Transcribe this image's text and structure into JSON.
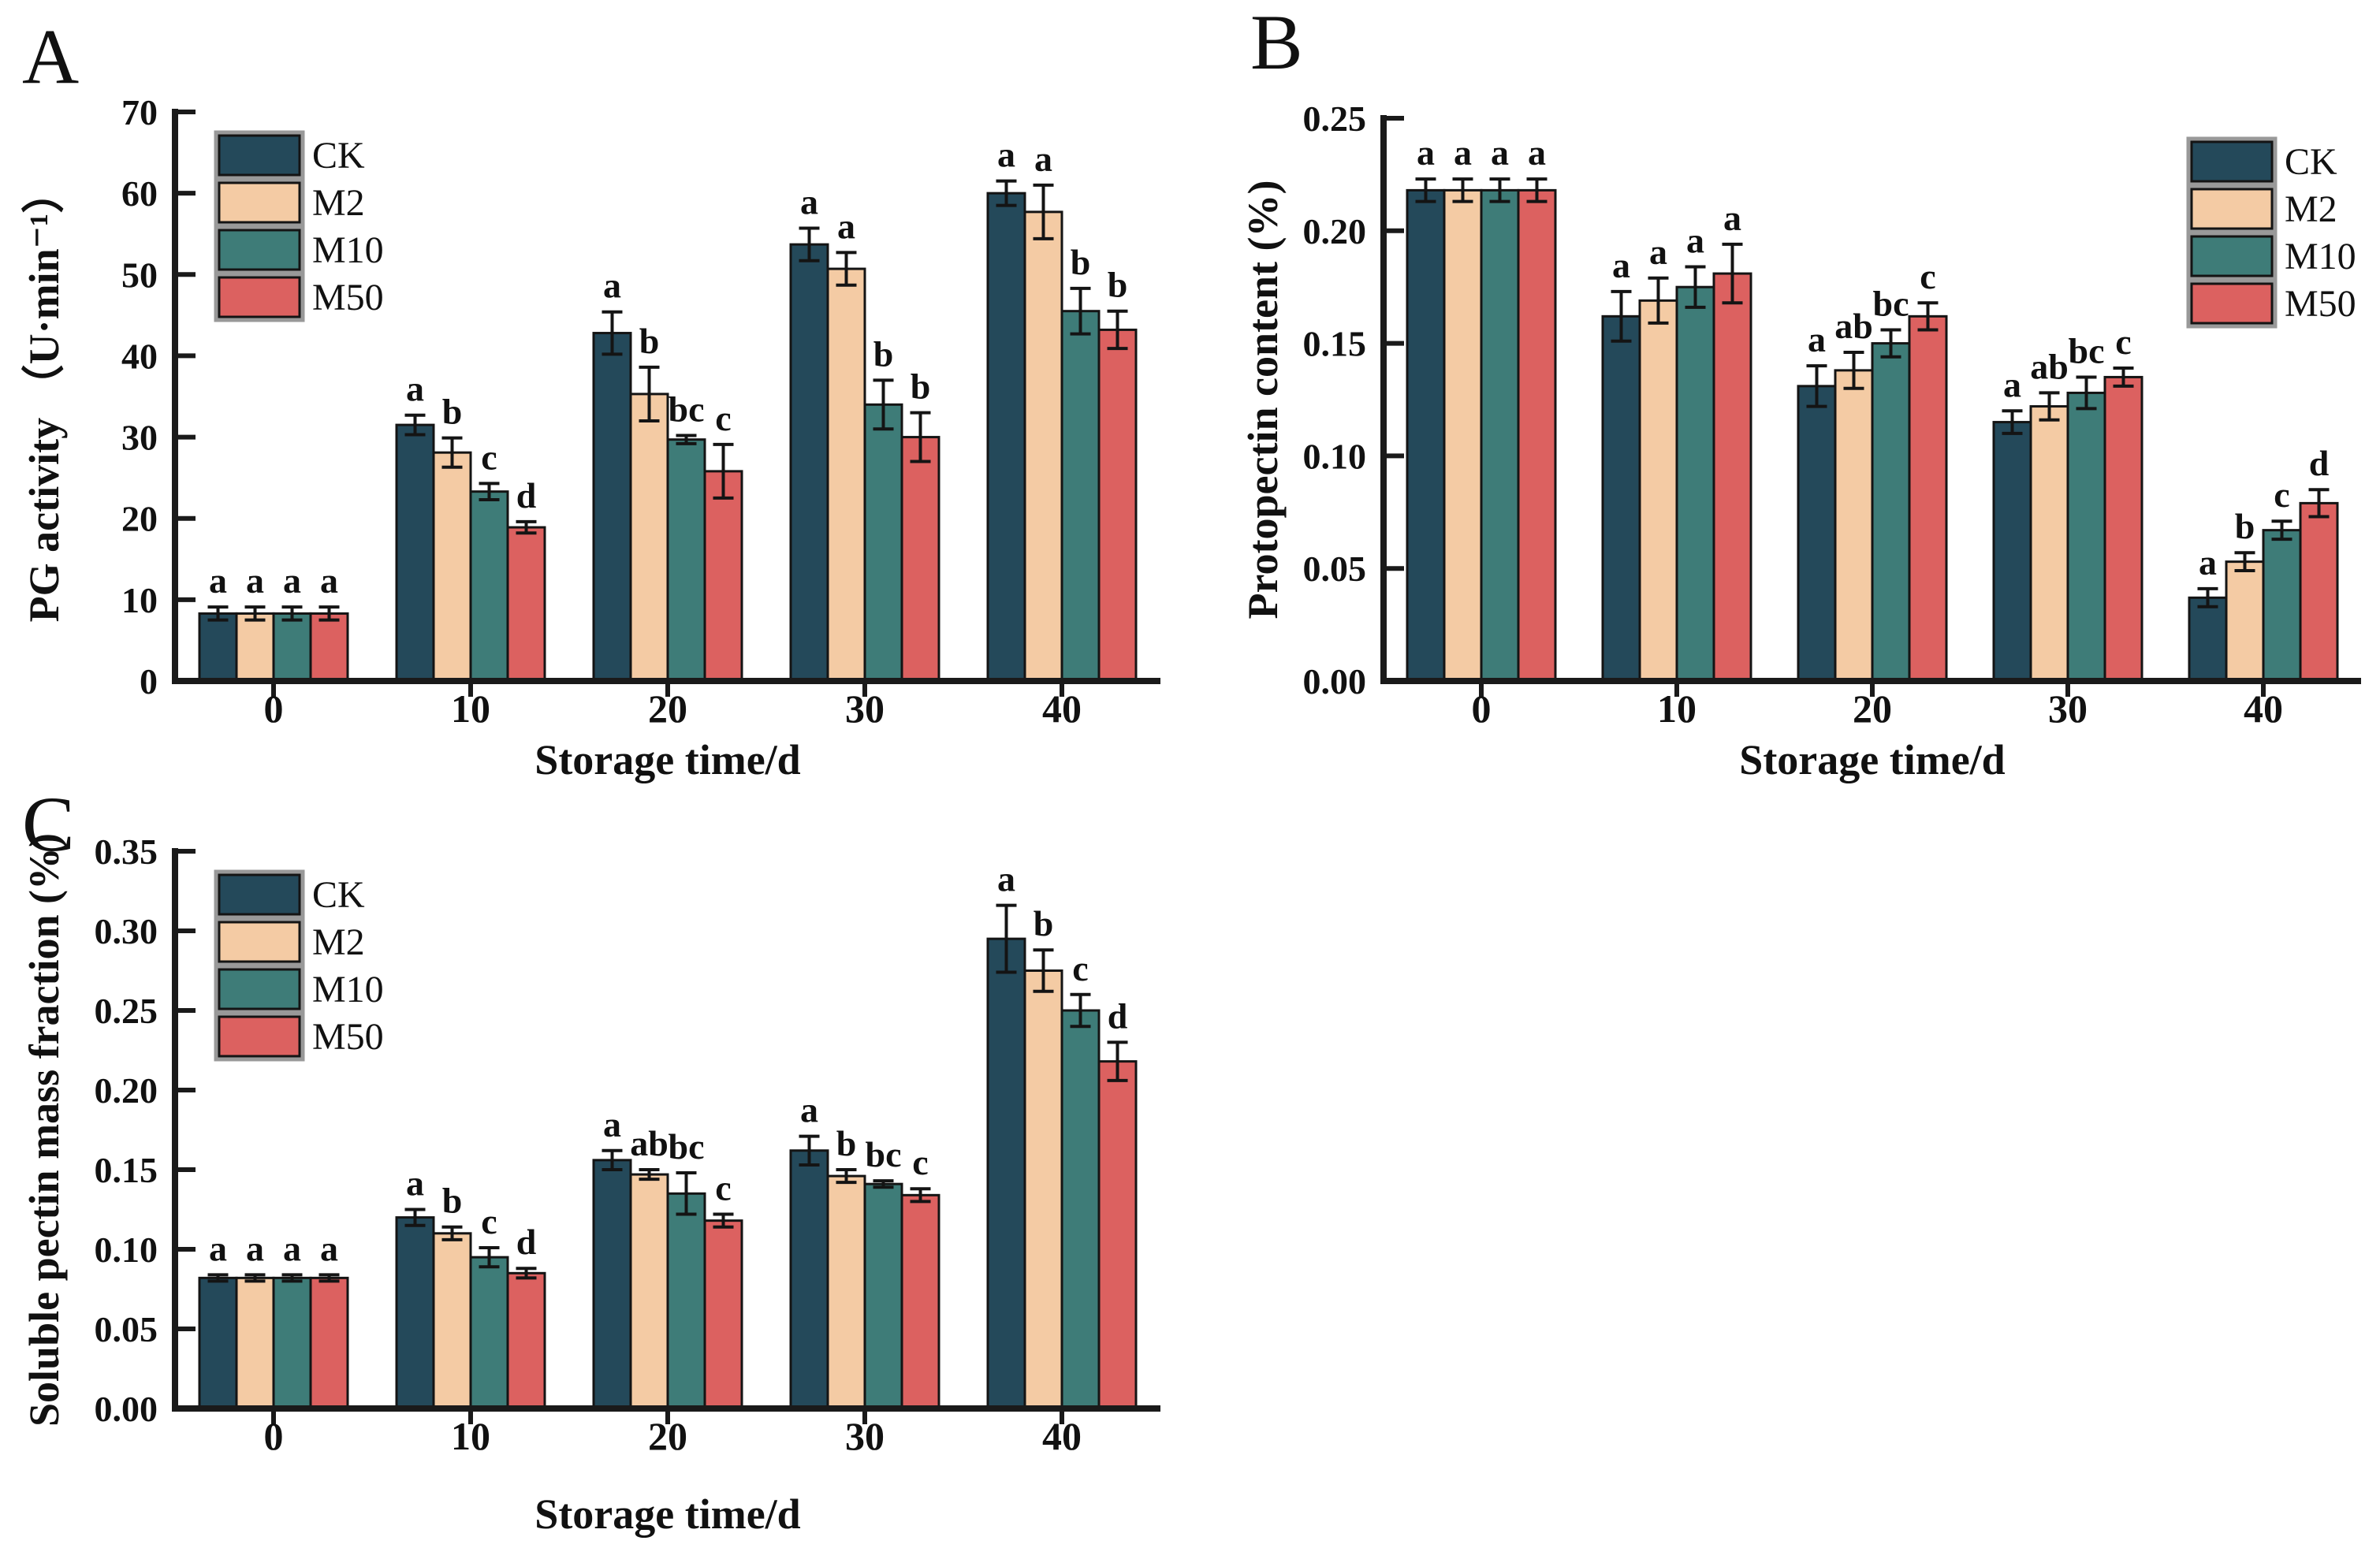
{
  "colors": {
    "CK": "#24495A",
    "M2": "#F4CBA4",
    "M10": "#3E7C78",
    "M50": "#DC6160",
    "axis": "#1A1A1A",
    "bar_border": "#141414",
    "legend_frame": "#999999",
    "text": "#111111"
  },
  "panels": [
    {
      "label": "A"
    },
    {
      "label": "B"
    },
    {
      "label": "C"
    }
  ],
  "chart_data": [
    {
      "type": "bar",
      "title": "",
      "xlabel": "Storage time/d",
      "ylabel": "PG activity （U·min⁻¹）",
      "categories": [
        "0",
        "10",
        "20",
        "30",
        "40"
      ],
      "ylim": [
        0,
        70
      ],
      "ytick_step": 10,
      "ytick_decimals": 0,
      "grid": false,
      "legend_position": "top-left",
      "legend": [
        "CK",
        "M2",
        "M10",
        "M50"
      ],
      "series": [
        {
          "name": "CK",
          "values": [
            8.3,
            31.5,
            42.8,
            53.7,
            60.0
          ],
          "errors": [
            0.8,
            1.2,
            2.6,
            2.0,
            1.5
          ],
          "letters": [
            "a",
            "a",
            "a",
            "a",
            "a"
          ]
        },
        {
          "name": "M2",
          "values": [
            8.3,
            28.1,
            35.3,
            50.7,
            57.7
          ],
          "errors": [
            0.8,
            1.8,
            3.3,
            2.0,
            3.3
          ],
          "letters": [
            "a",
            "b",
            "b",
            "a",
            "a"
          ]
        },
        {
          "name": "M10",
          "values": [
            8.3,
            23.3,
            29.7,
            34.0,
            45.5
          ],
          "errors": [
            0.8,
            1.0,
            0.5,
            3.0,
            2.8
          ],
          "letters": [
            "a",
            "c",
            "bc",
            "b",
            "b"
          ]
        },
        {
          "name": "M50",
          "values": [
            8.3,
            18.9,
            25.8,
            30.0,
            43.2
          ],
          "errors": [
            0.8,
            0.7,
            3.3,
            3.0,
            2.3
          ],
          "letters": [
            "a",
            "d",
            "c",
            "b",
            "b"
          ]
        }
      ]
    },
    {
      "type": "bar",
      "title": "",
      "xlabel": "Storage time/d",
      "ylabel": "Protopectin content (%)",
      "categories": [
        "0",
        "10",
        "20",
        "30",
        "40"
      ],
      "ylim": [
        0,
        0.25
      ],
      "ytick_step": 0.05,
      "ytick_decimals": 2,
      "grid": false,
      "legend_position": "top-right",
      "legend": [
        "CK",
        "M2",
        "M10",
        "M50"
      ],
      "series": [
        {
          "name": "CK",
          "values": [
            0.218,
            0.162,
            0.131,
            0.115,
            0.037
          ],
          "errors": [
            0.005,
            0.011,
            0.009,
            0.005,
            0.004
          ],
          "letters": [
            "a",
            "a",
            "a",
            "a",
            "a"
          ]
        },
        {
          "name": "M2",
          "values": [
            0.218,
            0.169,
            0.138,
            0.122,
            0.053
          ],
          "errors": [
            0.005,
            0.01,
            0.008,
            0.006,
            0.004
          ],
          "letters": [
            "a",
            "a",
            "ab",
            "ab",
            "b"
          ]
        },
        {
          "name": "M10",
          "values": [
            0.218,
            0.175,
            0.15,
            0.128,
            0.067
          ],
          "errors": [
            0.005,
            0.009,
            0.006,
            0.007,
            0.004
          ],
          "letters": [
            "a",
            "a",
            "bc",
            "bc",
            "c"
          ]
        },
        {
          "name": "M50",
          "values": [
            0.218,
            0.181,
            0.162,
            0.135,
            0.079
          ],
          "errors": [
            0.005,
            0.013,
            0.006,
            0.004,
            0.006
          ],
          "letters": [
            "a",
            "a",
            "c",
            "c",
            "d"
          ]
        }
      ]
    },
    {
      "type": "bar",
      "title": "",
      "xlabel": "Storage time/d",
      "ylabel": "Soluble pectin mass fraction (%)",
      "categories": [
        "0",
        "10",
        "20",
        "30",
        "40"
      ],
      "ylim": [
        0,
        0.35
      ],
      "ytick_step": 0.05,
      "ytick_decimals": 2,
      "grid": false,
      "legend_position": "top-left",
      "legend": [
        "CK",
        "M2",
        "M10",
        "M50"
      ],
      "series": [
        {
          "name": "CK",
          "values": [
            0.082,
            0.12,
            0.156,
            0.162,
            0.295
          ],
          "errors": [
            0.002,
            0.005,
            0.006,
            0.009,
            0.021
          ],
          "letters": [
            "a",
            "a",
            "a",
            "a",
            "a"
          ]
        },
        {
          "name": "M2",
          "values": [
            0.082,
            0.11,
            0.147,
            0.146,
            0.275
          ],
          "errors": [
            0.002,
            0.004,
            0.003,
            0.004,
            0.013
          ],
          "letters": [
            "a",
            "b",
            "ab",
            "b",
            "b"
          ]
        },
        {
          "name": "M10",
          "values": [
            0.082,
            0.095,
            0.135,
            0.141,
            0.25
          ],
          "errors": [
            0.002,
            0.006,
            0.013,
            0.002,
            0.01
          ],
          "letters": [
            "a",
            "c",
            "bc",
            "bc",
            "c"
          ]
        },
        {
          "name": "M50",
          "values": [
            0.082,
            0.085,
            0.118,
            0.134,
            0.218
          ],
          "errors": [
            0.002,
            0.003,
            0.004,
            0.004,
            0.012
          ],
          "letters": [
            "a",
            "d",
            "c",
            "c",
            "d"
          ]
        }
      ]
    }
  ]
}
